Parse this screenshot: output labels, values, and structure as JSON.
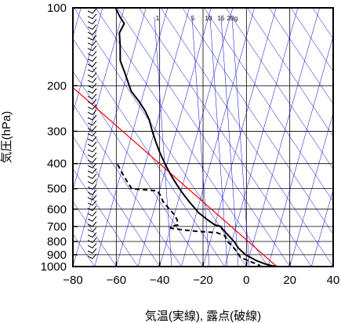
{
  "chart_data": {
    "type": "line",
    "diagram": "skew-t log-p",
    "xlabel": "気温(実線), 露点(破線)",
    "ylabel": "気圧(hPa)",
    "xlim": [
      -80,
      40
    ],
    "ylim": [
      1000,
      100
    ],
    "yscale": "log",
    "xticks": [
      -80,
      -60,
      -40,
      -20,
      0,
      20,
      40
    ],
    "yticks": [
      100,
      200,
      300,
      400,
      500,
      600,
      700,
      800,
      900,
      1000
    ],
    "grid": true,
    "mixing_ratio_labels": [
      "1",
      "5",
      "10",
      "15",
      "20",
      "g"
    ],
    "colors": {
      "temperature": "#000000",
      "dewpoint": "#000000",
      "reference": "#ff0000",
      "guides": "#0000cc",
      "wind_barbs": "#000000"
    },
    "series": [
      {
        "style": "solid",
        "points": [
          {
            "p": 1000,
            "t": 14
          },
          {
            "p": 990,
            "t": 11
          },
          {
            "p": 975,
            "t": 8
          },
          {
            "p": 950,
            "t": 4
          },
          {
            "p": 925,
            "t": 1
          },
          {
            "p": 900,
            "t": -2
          },
          {
            "p": 850,
            "t": -6
          },
          {
            "p": 800,
            "t": -9
          },
          {
            "p": 750,
            "t": -13
          },
          {
            "p": 715,
            "t": -16
          },
          {
            "p": 700,
            "t": -17
          },
          {
            "p": 690,
            "t": -20
          },
          {
            "p": 660,
            "t": -24
          },
          {
            "p": 620,
            "t": -29
          },
          {
            "p": 560,
            "t": -35
          },
          {
            "p": 520,
            "t": -39
          },
          {
            "p": 500,
            "t": -41
          },
          {
            "p": 470,
            "t": -44
          },
          {
            "p": 440,
            "t": -47
          },
          {
            "p": 400,
            "t": -51
          },
          {
            "p": 360,
            "t": -55
          },
          {
            "p": 330,
            "t": -58
          },
          {
            "p": 300,
            "t": -61
          },
          {
            "p": 270,
            "t": -64
          },
          {
            "p": 250,
            "t": -67
          },
          {
            "p": 230,
            "t": -71
          },
          {
            "p": 210,
            "t": -76
          },
          {
            "p": 180,
            "t": -81
          },
          {
            "p": 160,
            "t": -85
          },
          {
            "p": 140,
            "t": -87
          },
          {
            "p": 125,
            "t": -89
          },
          {
            "p": 115,
            "t": -88
          },
          {
            "p": 108,
            "t": -91
          },
          {
            "p": 100,
            "t": -94
          }
        ]
      },
      {
        "style": "dashed",
        "points": [
          {
            "p": 1000,
            "t": 5
          },
          {
            "p": 990,
            "t": 6
          },
          {
            "p": 975,
            "t": 4
          },
          {
            "p": 950,
            "t": 0
          },
          {
            "p": 920,
            "t": -4
          },
          {
            "p": 900,
            "t": -5
          },
          {
            "p": 850,
            "t": -8
          },
          {
            "p": 800,
            "t": -12
          },
          {
            "p": 760,
            "t": -14
          },
          {
            "p": 740,
            "t": -18
          },
          {
            "p": 730,
            "t": -28
          },
          {
            "p": 720,
            "t": -35
          },
          {
            "p": 710,
            "t": -40
          },
          {
            "p": 700,
            "t": -40
          },
          {
            "p": 690,
            "t": -37
          },
          {
            "p": 660,
            "t": -38
          },
          {
            "p": 630,
            "t": -40
          },
          {
            "p": 590,
            "t": -44
          },
          {
            "p": 560,
            "t": -47
          },
          {
            "p": 530,
            "t": -49
          },
          {
            "p": 510,
            "t": -51
          },
          {
            "p": 500,
            "t": -63
          },
          {
            "p": 490,
            "t": -64
          },
          {
            "p": 470,
            "t": -66
          },
          {
            "p": 440,
            "t": -69
          },
          {
            "p": 400,
            "t": -73
          }
        ]
      }
    ]
  }
}
